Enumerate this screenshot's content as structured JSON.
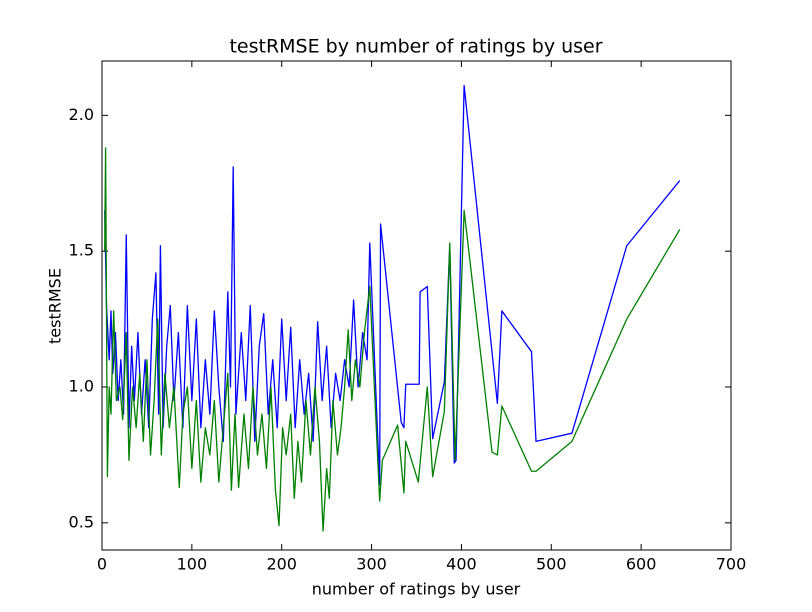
{
  "chart_data": {
    "type": "line",
    "title": "testRMSE by number of ratings by user",
    "xlabel": "number of ratings by user",
    "ylabel": "testRMSE",
    "xlim": [
      0,
      700
    ],
    "xticks": [
      0,
      100,
      200,
      300,
      400,
      500,
      600,
      700
    ],
    "ylim": [
      0.4,
      2.2
    ],
    "yticks": [
      0.5,
      {
        "value": 1,
        "label": "1.0"
      },
      1.5,
      {
        "value": 2,
        "label": "2.0"
      }
    ],
    "grid": false,
    "series": [
      {
        "color": "#0000ff",
        "x": [
          3,
          5,
          8,
          10,
          12,
          15,
          18,
          21,
          24,
          27,
          30,
          33,
          36,
          40,
          44,
          48,
          52,
          56,
          60,
          63,
          65,
          68,
          72,
          76,
          80,
          85,
          90,
          95,
          100,
          105,
          110,
          115,
          120,
          125,
          130,
          135,
          140,
          143,
          146,
          149,
          155,
          160,
          165,
          170,
          175,
          180,
          185,
          190,
          195,
          200,
          205,
          210,
          215,
          220,
          225,
          230,
          235,
          240,
          245,
          250,
          255,
          260,
          265,
          270,
          275,
          280,
          285,
          290,
          295,
          298,
          309,
          310,
          333,
          336,
          338,
          353,
          354,
          362,
          368,
          381,
          387,
          392,
          394,
          403,
          440,
          445,
          478,
          483,
          523,
          584,
          643
        ],
        "values": [
          1.65,
          1.3,
          1.1,
          1.28,
          1.05,
          1.2,
          0.95,
          1.1,
          0.9,
          1.56,
          0.85,
          1.15,
          0.95,
          1.2,
          0.9,
          1.1,
          0.85,
          1.25,
          1.42,
          0.9,
          1.52,
          0.85,
          1.15,
          1.3,
          0.95,
          1.2,
          0.85,
          1.3,
          0.95,
          1.25,
          0.85,
          1.1,
          0.9,
          1.28,
          1.0,
          0.8,
          1.35,
          1.0,
          1.81,
          0.9,
          1.2,
          0.95,
          1.3,
          0.8,
          1.15,
          1.27,
          0.9,
          1.1,
          0.85,
          1.25,
          0.95,
          1.22,
          0.85,
          1.1,
          0.9,
          1.05,
          0.8,
          1.24,
          0.95,
          1.15,
          0.85,
          1.05,
          0.95,
          1.1,
          1.0,
          1.32,
          1.0,
          1.2,
          1.1,
          1.53,
          0.64,
          1.6,
          0.87,
          0.85,
          1.01,
          1.01,
          1.35,
          1.37,
          0.81,
          1.02,
          1.52,
          0.72,
          0.73,
          2.11,
          0.94,
          1.28,
          1.13,
          0.8,
          0.83,
          1.52,
          1.76
        ]
      },
      {
        "color": "#008000",
        "x": [
          3,
          4,
          6,
          8,
          10,
          13,
          16,
          20,
          23,
          27,
          30,
          34,
          38,
          42,
          46,
          50,
          54,
          58,
          62,
          66,
          70,
          75,
          80,
          86,
          90,
          95,
          100,
          105,
          110,
          115,
          120,
          125,
          130,
          135,
          140,
          144,
          148,
          152,
          158,
          163,
          168,
          173,
          178,
          183,
          188,
          193,
          197,
          201,
          205,
          210,
          214,
          218,
          222,
          227,
          232,
          237,
          242,
          246,
          250,
          253,
          257,
          262,
          266,
          270,
          274,
          278,
          282,
          287,
          292,
          298,
          309,
          312,
          329,
          336,
          338,
          352,
          362,
          368,
          381,
          387,
          393,
          403,
          434,
          440,
          445,
          478,
          483,
          523,
          584,
          643
        ],
        "values": [
          1.5,
          1.88,
          0.67,
          1.0,
          0.9,
          1.28,
          0.95,
          1.0,
          0.88,
          1.2,
          0.73,
          1.0,
          0.85,
          1.05,
          0.8,
          1.1,
          0.75,
          0.95,
          1.25,
          0.75,
          1.05,
          0.85,
          1.0,
          0.63,
          0.9,
          1.0,
          0.7,
          0.95,
          0.65,
          0.85,
          0.75,
          0.95,
          0.65,
          0.85,
          1.05,
          0.62,
          0.9,
          0.63,
          0.9,
          0.7,
          1.0,
          0.75,
          0.9,
          0.7,
          1.0,
          0.62,
          0.49,
          0.85,
          0.75,
          0.9,
          0.59,
          0.8,
          0.65,
          0.95,
          0.75,
          1.0,
          0.8,
          0.47,
          0.7,
          0.59,
          0.95,
          0.75,
          0.85,
          1.0,
          1.21,
          0.95,
          1.1,
          1.0,
          1.2,
          1.37,
          0.58,
          0.73,
          0.86,
          0.61,
          0.8,
          0.65,
          1.0,
          0.67,
          0.91,
          1.53,
          0.73,
          1.65,
          0.76,
          0.75,
          0.93,
          0.69,
          0.69,
          0.8,
          1.25,
          1.58
        ]
      }
    ]
  }
}
